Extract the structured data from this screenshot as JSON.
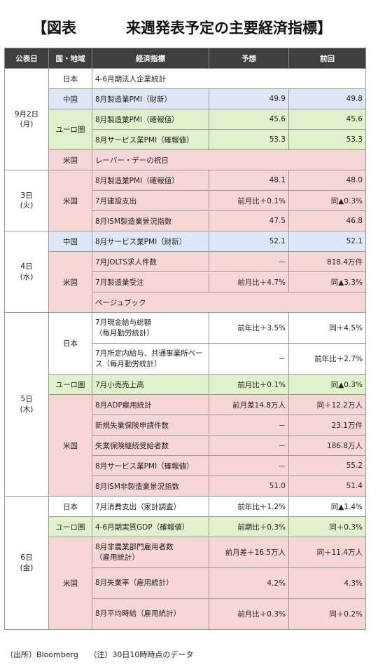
{
  "title": {
    "left": "【図表",
    "right": "来週発表予定の主要経済指標】"
  },
  "headers": [
    "公表日",
    "国・地域",
    "経済指標",
    "予想",
    "前回"
  ],
  "days": [
    {
      "date": [
        "9月2日",
        "(月)"
      ],
      "groups": [
        {
          "region": "日本",
          "color": "jp",
          "rows": [
            {
              "name": "4-6月期法人企業統計",
              "forecast": "",
              "prev": "",
              "span": true
            }
          ]
        },
        {
          "region": "中国",
          "color": "cn",
          "rows": [
            {
              "name": "8月製造業PMI（財新）",
              "forecast": "49.9",
              "prev": "49.8"
            }
          ]
        },
        {
          "region": "ユーロ圏",
          "color": "eu",
          "rows": [
            {
              "name": "8月製造業PMI（確報値）",
              "forecast": "45.6",
              "prev": "45.6"
            },
            {
              "name": "8月サービス業PMI（確報値）",
              "forecast": "53.3",
              "prev": "53.3"
            }
          ]
        },
        {
          "region": "米国",
          "color": "us",
          "rows": [
            {
              "name": "レーバー・デーの祝日",
              "forecast": "",
              "prev": "",
              "span": true
            }
          ]
        }
      ]
    },
    {
      "date": [
        "3日",
        "(火)"
      ],
      "groups": [
        {
          "region": "米国",
          "color": "us",
          "rows": [
            {
              "name": "8月製造業PMI（確報値）",
              "forecast": "48.1",
              "prev": "48.0"
            },
            {
              "name": "7月建設支出",
              "forecast": "前月比＋0.1%",
              "prev": "同▲0.3%"
            },
            {
              "name": "8月ISM製造業景況指数",
              "forecast": "47.5",
              "prev": "46.8"
            }
          ]
        }
      ]
    },
    {
      "date": [
        "4日",
        "(水)"
      ],
      "groups": [
        {
          "region": "中国",
          "color": "cn",
          "rows": [
            {
              "name": "8月サービス業PMI（財新）",
              "forecast": "52.1",
              "prev": "52.1"
            }
          ]
        },
        {
          "region": "米国",
          "color": "us",
          "rows": [
            {
              "name": "7月JOLTS求人件数",
              "forecast": "－",
              "prev": "818.4万件"
            },
            {
              "name": "7月製造業受注",
              "forecast": "前月比＋4.7%",
              "prev": "同▲3.3%"
            },
            {
              "name": "ベージュブック",
              "forecast": "",
              "prev": "",
              "span": true
            }
          ]
        }
      ]
    },
    {
      "date": [
        "5日",
        "(木)"
      ],
      "groups": [
        {
          "region": "日本",
          "color": "jp",
          "rows": [
            {
              "name": "7月現金給与総額\n（毎月勤労統計）",
              "forecast": "前年比＋3.5%",
              "prev": "同＋4.5%",
              "tall": true
            },
            {
              "name": "7月所定内給与、共通事業所ベース（毎月勤労統計）",
              "forecast": "－",
              "prev": "前年比＋2.7%",
              "tall": true
            }
          ]
        },
        {
          "region": "ユーロ圏",
          "color": "eu",
          "rows": [
            {
              "name": "7月小売売上高",
              "forecast": "前月比＋0.1%",
              "prev": "同▲0.3%"
            }
          ]
        },
        {
          "region": "米国",
          "color": "us",
          "rows": [
            {
              "name": "8月ADP雇用統計",
              "forecast": "前月差14.8万人",
              "prev": "同＋12.2万人"
            },
            {
              "name": "新規失業保険申請件数",
              "forecast": "－",
              "prev": "23.1万件"
            },
            {
              "name": "失業保険継続受給者数",
              "forecast": "－",
              "prev": "186.8万人"
            },
            {
              "name": "8月サービス業PMI（確報値）",
              "forecast": "－",
              "prev": "55.2"
            },
            {
              "name": "8月ISM非製造業景況指数",
              "forecast": "51.0",
              "prev": "51.4"
            }
          ]
        }
      ]
    },
    {
      "date": [
        "6日",
        "(金)"
      ],
      "groups": [
        {
          "region": "日本",
          "color": "jp",
          "rows": [
            {
              "name": "7月消費支出（家計調査）",
              "forecast": "前年比＋1.2%",
              "prev": "同▲1.4%"
            }
          ]
        },
        {
          "region": "ユーロ圏",
          "color": "eu",
          "rows": [
            {
              "name": "4-6月期実質GDP（確報値）",
              "forecast": "前期比＋0.3%",
              "prev": "同＋0.3%"
            }
          ]
        },
        {
          "region": "米国",
          "color": "us",
          "rows": [
            {
              "name": "8月非農業部門雇用者数\n（雇用統計）",
              "forecast": "前月差＋16.5万人",
              "prev": "同＋11.4万人",
              "tall": true
            },
            {
              "name": "8月失業率（雇用統計）",
              "forecast": "4.2%",
              "prev": "4.3%",
              "tall": true
            },
            {
              "name": "8月平均時給（雇用統計）",
              "forecast": "前月比＋0.3%",
              "prev": "同＋0.2%",
              "tall": true
            }
          ]
        }
      ]
    }
  ],
  "footer": {
    "source": "（出所）Bloomberg",
    "note": "（注）30日10時時点のデータ"
  }
}
